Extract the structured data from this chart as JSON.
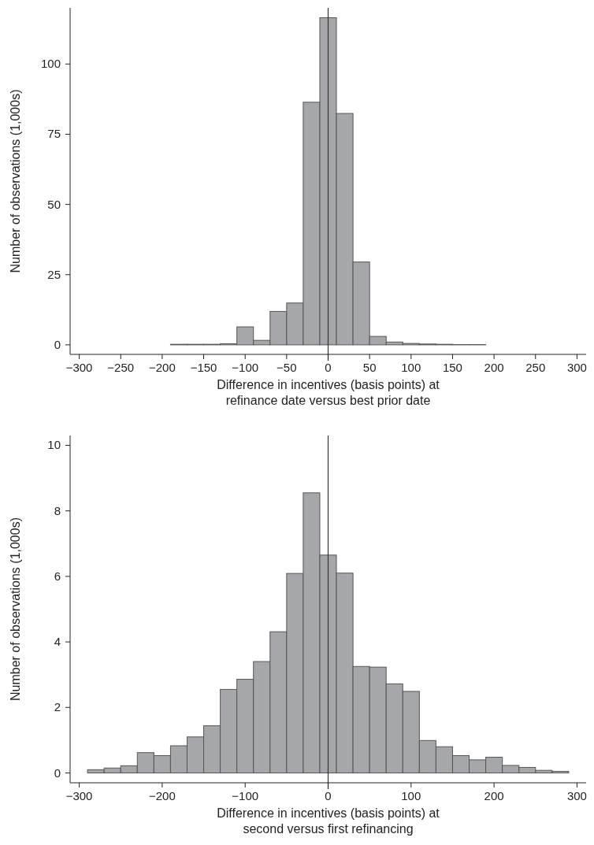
{
  "chart_data": [
    {
      "type": "histogram",
      "xlabel": "Difference in incentives (basis points) at\nrefinance date versus best prior date",
      "ylabel": "Number of observations (1,000s)",
      "color": "#a6a7ab",
      "bins": [
        -190,
        -170,
        -150,
        -130,
        -110,
        -90,
        -70,
        -50,
        -30,
        -10,
        10,
        30,
        50,
        70,
        90,
        110,
        130,
        150,
        170,
        190
      ],
      "values": [
        0.2,
        0.2,
        0.2,
        0.4,
        6.4,
        1.6,
        11.9,
        14.9,
        86.4,
        116.5,
        82.4,
        29.5,
        3.0,
        1.0,
        0.5,
        0.3,
        0.2,
        0.1,
        0.1
      ],
      "xlim": [
        -311,
        311
      ],
      "ylim": [
        -3.4,
        120
      ],
      "xticks": [
        -300,
        -250,
        -200,
        -150,
        -100,
        -50,
        0,
        50,
        100,
        150,
        200,
        250,
        300
      ],
      "yticks": [
        0,
        25,
        50,
        75,
        100
      ],
      "ref_lines": [
        {
          "axis": "x",
          "value": 0,
          "color": "#333333"
        }
      ],
      "grid": false
    },
    {
      "type": "histogram",
      "xlabel": "Difference in incentives (basis points) at\nsecond versus first refinancing",
      "ylabel": "Number of observations (1,000s)",
      "color": "#a6a7ab",
      "bins": [
        -290,
        -270,
        -250,
        -230,
        -210,
        -190,
        -170,
        -150,
        -130,
        -110,
        -90,
        -70,
        -50,
        -30,
        -10,
        10,
        30,
        50,
        70,
        90,
        110,
        130,
        150,
        170,
        190,
        210,
        230,
        250,
        270,
        290
      ],
      "values": [
        0.1,
        0.15,
        0.22,
        0.62,
        0.53,
        0.83,
        1.1,
        1.44,
        2.55,
        2.86,
        3.4,
        4.31,
        6.09,
        8.55,
        6.65,
        6.1,
        3.25,
        3.23,
        2.72,
        2.49,
        0.99,
        0.8,
        0.53,
        0.4,
        0.48,
        0.23,
        0.17,
        0.08,
        0.05
      ],
      "xlim": [
        -311,
        311
      ],
      "ylim": [
        -0.3,
        10.3
      ],
      "xticks": [
        -300,
        -200,
        -100,
        0,
        100,
        200,
        300
      ],
      "yticks": [
        0,
        2,
        4,
        6,
        8,
        10
      ],
      "ref_lines": [
        {
          "axis": "x",
          "value": 0,
          "color": "#333333"
        }
      ],
      "grid": false
    }
  ]
}
